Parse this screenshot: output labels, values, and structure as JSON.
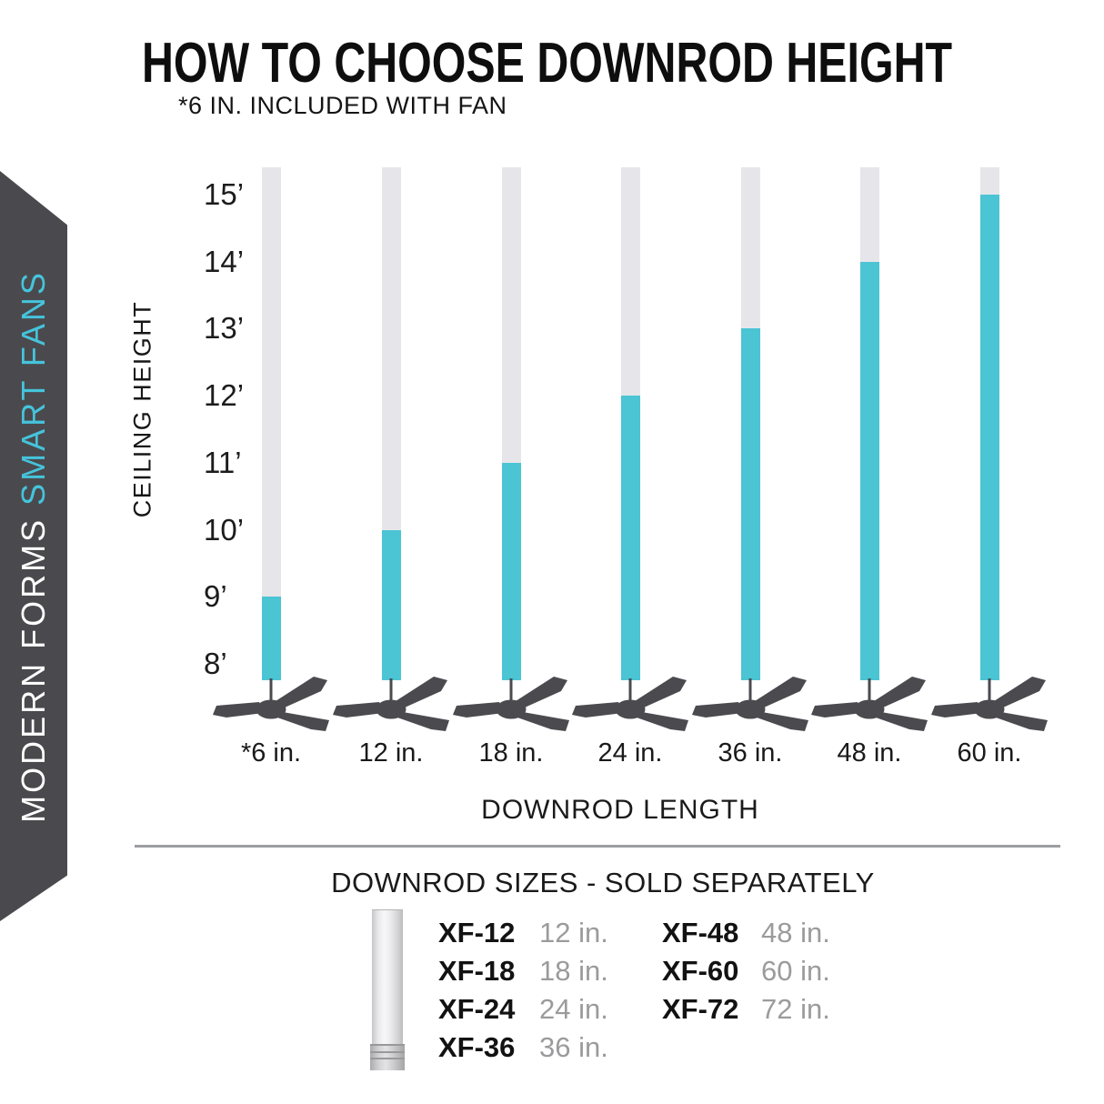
{
  "title": "HOW TO CHOOSE DOWNROD HEIGHT",
  "subtitle": "*6 IN. INCLUDED WITH FAN",
  "banner": {
    "brand": "MODERN FORMS",
    "product": "SMART FANS"
  },
  "chart_data": {
    "type": "bar",
    "title": "HOW TO CHOOSE DOWNROD HEIGHT",
    "note": "*6 IN. INCLUDED WITH FAN",
    "xlabel": "DOWNROD LENGTH",
    "ylabel": "CEILING HEIGHT",
    "categories": [
      "*6 in.",
      "12 in.",
      "18 in.",
      "24 in.",
      "36 in.",
      "48 in.",
      "60 in."
    ],
    "values_ceiling_ft": [
      9,
      10,
      11,
      12,
      13,
      14,
      15
    ],
    "y_tick_labels": [
      "15’",
      "14’",
      "13’",
      "12’",
      "11’",
      "10’",
      "9’",
      "8’"
    ],
    "y_tick_values_ft": [
      15,
      14,
      13,
      12,
      11,
      10,
      9,
      8
    ],
    "ylim_ft": [
      8,
      15.4
    ],
    "grid": false,
    "legend": "none",
    "bar_color": "#4BC4D4",
    "track_color": "#E6E6EA"
  },
  "downrod_table": {
    "heading": "DOWNROD SIZES - SOLD SEPARATELY",
    "left_column": [
      {
        "code": "XF-12",
        "size": "12 in."
      },
      {
        "code": "XF-18",
        "size": "18 in."
      },
      {
        "code": "XF-24",
        "size": "24 in."
      },
      {
        "code": "XF-36",
        "size": "36 in."
      }
    ],
    "right_column": [
      {
        "code": "XF-48",
        "size": "48 in."
      },
      {
        "code": "XF-60",
        "size": "60 in."
      },
      {
        "code": "XF-72",
        "size": "72 in."
      }
    ]
  },
  "icons": {
    "fan": "ceiling-fan-silhouette",
    "rod": "downrod-illustration"
  },
  "colors": {
    "accent_teal": "#4BC4D4",
    "banner_accent": "#45C4DC",
    "charcoal": "#4A4A4E",
    "track_gray": "#E6E6EA",
    "muted_text": "#9B9B9D",
    "divider_gray": "#9C9EA1"
  }
}
